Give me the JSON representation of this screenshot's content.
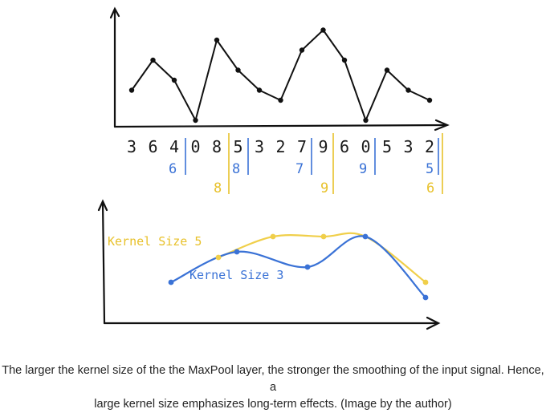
{
  "signal": {
    "digits": [
      "3",
      "6",
      "4",
      "0",
      "8",
      "5",
      "3",
      "2",
      "7",
      "9",
      "6",
      "0",
      "5",
      "3",
      "2"
    ]
  },
  "maxpool_k3": {
    "values": [
      "6",
      "8",
      "7",
      "9",
      "5"
    ],
    "color": "#3a72d6"
  },
  "maxpool_k5": {
    "values": [
      "8",
      "9",
      "6"
    ],
    "color": "#e8c12a"
  },
  "smoothed": {
    "kernel5_label": "Kernel Size 5",
    "kernel3_label": "Kernel Size 3",
    "kernel3_values": [
      6,
      8,
      7,
      9,
      5
    ],
    "kernel5_values": [
      8,
      9,
      9,
      9,
      6
    ],
    "kernel3_color": "#3a72d6",
    "kernel5_color": "#f0cf4a"
  },
  "caption": {
    "line1": "The larger the kernel size of the the MaxPool layer, the stronger the smoothing of the input signal. Hence, a",
    "line2": "large kernel size emphasizes long-term effects. (Image by the author)"
  }
}
